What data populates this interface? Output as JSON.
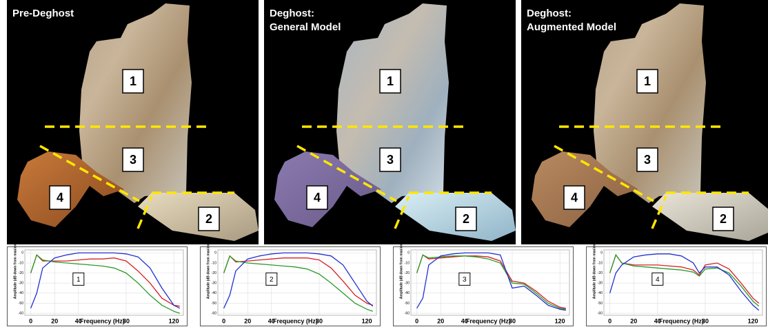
{
  "panels": [
    {
      "title": [
        "Pre-Deghost"
      ],
      "regions": [
        "1",
        "3",
        "4",
        "2"
      ]
    },
    {
      "title": [
        "Deghost:",
        "General Model"
      ],
      "regions": [
        "1",
        "3",
        "4",
        "2"
      ]
    },
    {
      "title": [
        "Deghost:",
        "Augmented Model"
      ],
      "regions": [
        "1",
        "3",
        "4",
        "2"
      ]
    }
  ],
  "chart_data": [
    {
      "type": "line",
      "annotation": "1",
      "x_label": "Frequency (Hz)",
      "y_label": "Amplitude (dB down from maximum)",
      "x": [
        0,
        5,
        10,
        20,
        30,
        40,
        50,
        60,
        70,
        80,
        90,
        100,
        110,
        120,
        125
      ],
      "series": [
        {
          "color": "#d62020",
          "values": [
            -20,
            -2,
            -8,
            -8,
            -8,
            -7,
            -6,
            -6,
            -5,
            -8,
            -18,
            -30,
            -45,
            -52,
            -53
          ]
        },
        {
          "color": "#2a9a2a",
          "values": [
            -20,
            -2,
            -7,
            -9,
            -10,
            -11,
            -12,
            -13,
            -15,
            -20,
            -30,
            -42,
            -52,
            -58,
            -60
          ]
        },
        {
          "color": "#2030d0",
          "values": [
            -55,
            -40,
            -15,
            -5,
            -2,
            0,
            0,
            0,
            0,
            -1,
            -4,
            -15,
            -35,
            -52,
            -55
          ]
        }
      ],
      "xlim": [
        -5,
        128
      ],
      "ylim": [
        -62,
        3
      ],
      "xticks": [
        0,
        20,
        40,
        80,
        120
      ],
      "yticks": [
        0,
        -10,
        -20,
        -30,
        -40,
        -50,
        -60
      ]
    },
    {
      "type": "line",
      "annotation": "2",
      "x_label": "Frequency (Hz)",
      "y_label": "Amplitude (dB down from maximum)",
      "x": [
        0,
        5,
        10,
        20,
        30,
        40,
        50,
        60,
        70,
        80,
        90,
        100,
        110,
        120,
        125
      ],
      "series": [
        {
          "color": "#d62020",
          "values": [
            -20,
            -3,
            -9,
            -8,
            -7,
            -6,
            -5,
            -5,
            -5,
            -7,
            -15,
            -28,
            -42,
            -50,
            -52
          ]
        },
        {
          "color": "#2a9a2a",
          "values": [
            -20,
            -3,
            -8,
            -10,
            -11,
            -12,
            -13,
            -14,
            -16,
            -21,
            -30,
            -40,
            -50,
            -56,
            -58
          ]
        },
        {
          "color": "#2030d0",
          "values": [
            -55,
            -42,
            -18,
            -6,
            -3,
            -1,
            0,
            0,
            0,
            -1,
            -3,
            -12,
            -30,
            -48,
            -53
          ]
        }
      ],
      "xlim": [
        -5,
        128
      ],
      "ylim": [
        -62,
        3
      ],
      "xticks": [
        0,
        20,
        40,
        80,
        120
      ],
      "yticks": [
        0,
        -10,
        -20,
        -30,
        -40,
        -50,
        -60
      ]
    },
    {
      "type": "line",
      "annotation": "3",
      "x_label": "Frequency (Hz)",
      "y_label": "Amplitude (dB down from maximum)",
      "x": [
        0,
        5,
        10,
        20,
        30,
        40,
        50,
        60,
        70,
        80,
        90,
        100,
        110,
        120,
        125
      ],
      "series": [
        {
          "color": "#d62020",
          "values": [
            -20,
            -2,
            -6,
            -5,
            -4,
            -3,
            -3,
            -4,
            -8,
            -28,
            -30,
            -38,
            -48,
            -54,
            -55
          ]
        },
        {
          "color": "#2a9a2a",
          "values": [
            -20,
            -2,
            -5,
            -4,
            -3,
            -3,
            -4,
            -6,
            -10,
            -30,
            -31,
            -40,
            -50,
            -55,
            -56
          ]
        },
        {
          "color": "#2030d0",
          "values": [
            -55,
            -45,
            -12,
            -3,
            -1,
            0,
            0,
            0,
            -2,
            -35,
            -33,
            -42,
            -52,
            -56,
            -57
          ]
        }
      ],
      "xlim": [
        -5,
        128
      ],
      "ylim": [
        -62,
        3
      ],
      "xticks": [
        0,
        20,
        40,
        80,
        120
      ],
      "yticks": [
        0,
        -10,
        -20,
        -30,
        -40,
        -50,
        -60
      ]
    },
    {
      "type": "line",
      "annotation": "4",
      "x_label": "Frequency (Hz)",
      "y_label": "Amplitude (dB down from maximum)",
      "x": [
        0,
        5,
        10,
        20,
        30,
        40,
        50,
        60,
        70,
        75,
        80,
        90,
        100,
        110,
        120,
        125
      ],
      "series": [
        {
          "color": "#d62020",
          "values": [
            -20,
            -2,
            -10,
            -12,
            -12,
            -12,
            -13,
            -14,
            -17,
            -22,
            -12,
            -10,
            -16,
            -30,
            -45,
            -50
          ]
        },
        {
          "color": "#2a9a2a",
          "values": [
            -20,
            -2,
            -10,
            -13,
            -14,
            -15,
            -16,
            -17,
            -19,
            -23,
            -16,
            -15,
            -20,
            -33,
            -48,
            -53
          ]
        },
        {
          "color": "#2030d0",
          "values": [
            -40,
            -20,
            -12,
            -4,
            -2,
            -1,
            -1,
            -3,
            -10,
            -20,
            -14,
            -14,
            -22,
            -38,
            -52,
            -57
          ]
        }
      ],
      "xlim": [
        -5,
        128
      ],
      "ylim": [
        -62,
        3
      ],
      "xticks": [
        0,
        20,
        40,
        80,
        120
      ],
      "yticks": [
        0,
        -10,
        -20,
        -30,
        -40,
        -50,
        -60
      ]
    }
  ]
}
